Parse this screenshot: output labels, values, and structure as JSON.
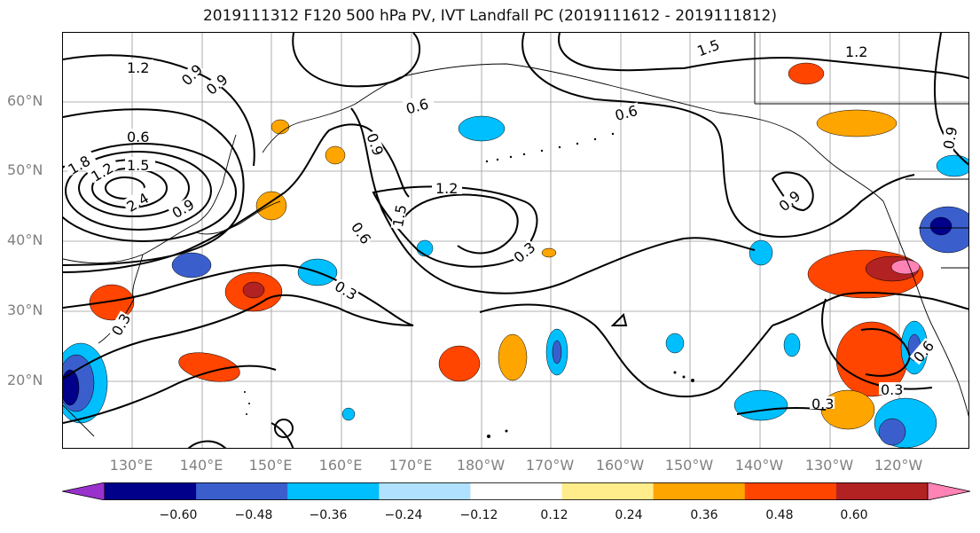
{
  "title": "2019111312 F120 500 hPa PV, IVT Landfall PC (2019111612 - 2019111812)",
  "lat_labels": [
    "60°N",
    "50°N",
    "40°N",
    "30°N",
    "20°N"
  ],
  "lon_labels": [
    "130°E",
    "140°E",
    "150°E",
    "160°E",
    "170°E",
    "180°W",
    "170°W",
    "160°W",
    "150°W",
    "140°W",
    "130°W",
    "120°W"
  ],
  "contour_labels": [
    "1.2",
    "0.9",
    "0.6",
    "1.5",
    "1.2",
    "0.6",
    "0.9",
    "0.6",
    "1.2",
    "1.8",
    "2.4",
    "1.5",
    "0.9",
    "1.2",
    "1.5",
    "0.6",
    "0.3",
    "0.3",
    "0.3",
    "0.9",
    "0.3",
    "0.3",
    "0.6",
    "0.9",
    "0.9"
  ],
  "colorbar": {
    "tick_labels": [
      "−0.60",
      "−0.48",
      "−0.36",
      "−0.24",
      "−0.12",
      "0.12",
      "0.24",
      "0.36",
      "0.48",
      "0.60"
    ],
    "colors": [
      "#9932CC",
      "#00008B",
      "#3A5FCD",
      "#00BFFF",
      "#B0E2FF",
      "#FFFFFF",
      "#FFEC8B",
      "#FFA500",
      "#FF4500",
      "#B22222",
      "#FF83B4"
    ]
  },
  "colors": {
    "pos_low": "#FFEC8B",
    "pos_mid": "#FFA500",
    "pos_high": "#FF4500",
    "pos_vhigh": "#B22222",
    "pos_max": "#FF83B4",
    "neg_low": "#B0E2FF",
    "neg_mid": "#00BFFF",
    "neg_high": "#3A5FCD",
    "neg_vhigh": "#00008B",
    "contour": "#000000",
    "grid": "#9a9a9a",
    "axis_text": "#808080"
  }
}
